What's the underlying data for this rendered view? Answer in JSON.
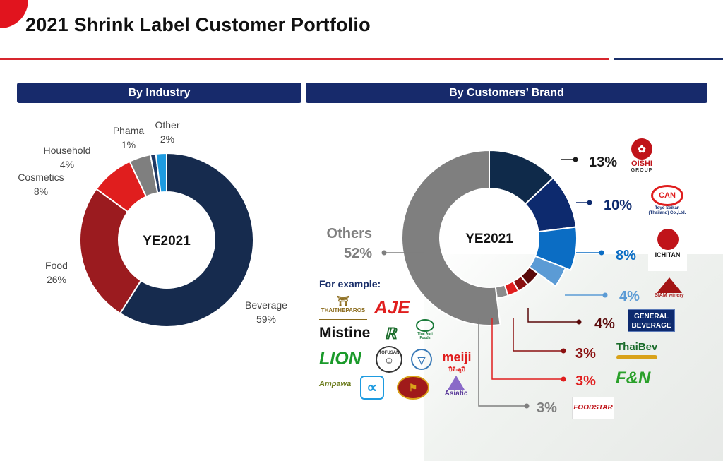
{
  "page": {
    "title": "2021 Shrink Label Customer Portfolio",
    "left_header": "By Industry",
    "right_header": "By Customers’ Brand",
    "for_example_label": "For example:"
  },
  "colors": {
    "brand_red": "#d7262e",
    "brand_navy": "#172a6b"
  },
  "chart_data": [
    {
      "type": "pie",
      "center_label": "YE2021",
      "categories": [
        "Beverage",
        "Food",
        "Cosmetics",
        "Household",
        "Phama",
        "Other"
      ],
      "values": [
        59,
        26,
        8,
        4,
        1,
        2
      ],
      "value_labels": [
        "59%",
        "26%",
        "8%",
        "4%",
        "1%",
        "2%"
      ],
      "colors": [
        "#162b4e",
        "#9b1b1f",
        "#e01e1e",
        "#7f7f7f",
        "#1f3864",
        "#1e9be0"
      ]
    },
    {
      "type": "pie",
      "center_label": "YE2021",
      "categories": [
        "OISHI GROUP",
        "Toyo Seikan",
        "ICHITAN",
        "SIAM Winery",
        "GENERAL BEVERAGE",
        "ThaiBev",
        "F&N",
        "FOODSTAR",
        "Others"
      ],
      "values": [
        13,
        10,
        8,
        4,
        4,
        3,
        3,
        3,
        52
      ],
      "value_labels": [
        "13%",
        "10%",
        "8%",
        "4%",
        "4%",
        "3%",
        "3%",
        "3%",
        "52%"
      ],
      "colors": [
        "#0f2a4a",
        "#0d2a6e",
        "#0b6dc4",
        "#5b9bd5",
        "#5a0a0a",
        "#8b1010",
        "#e01e1e",
        "#7f7f7f",
        "#7f7f7f"
      ],
      "label_colors": [
        "#1a1a1a",
        "#0d2a6e",
        "#0b6dc4",
        "#5b9bd5",
        "#5a0a0a",
        "#8b1010",
        "#e01e1e",
        "#7f7f7f",
        "#7f7f7f"
      ]
    }
  ],
  "brand_logos": [
    {
      "text": "OISHI",
      "sub": "GROUP",
      "color": "#c0141a"
    },
    {
      "text": "CAN",
      "sub": "Toyo Seikan (Thailand) Co.,Ltd.",
      "color": "#e01e1e"
    },
    {
      "text": "ICHITAN",
      "color": "#c0141a"
    },
    {
      "text": "SIAM winery",
      "color": "#a31515"
    },
    {
      "text": "GENERAL BEVERAGE",
      "color": "#ffffff"
    },
    {
      "text": "ThaiBev",
      "color": "#1a6b2a"
    },
    {
      "text": "F&N",
      "color": "#2aa02a"
    },
    {
      "text": "FOODSTAR",
      "color": "#c0141a"
    }
  ],
  "example_logos": [
    {
      "text": "THAITHEPAROS",
      "color": "#8a6a1a"
    },
    {
      "text": "AJE",
      "color": "#e01e1e"
    },
    {
      "text": "Thai Agri Foods",
      "color": "#1a7a3a"
    },
    {
      "text": "Mistine",
      "color": "#111111"
    },
    {
      "text": "LION",
      "color": "#1a9a2a"
    },
    {
      "text": "TOFUSAN",
      "color": "#333333"
    },
    {
      "text": "meiji",
      "color": "#e01e1e"
    },
    {
      "text": "ปีดี-คูปี",
      "color": "#e01e1e"
    },
    {
      "text": "Ampawa",
      "color": "#6a7a1a"
    },
    {
      "text": "Asiatic",
      "color": "#5a3a9a"
    }
  ]
}
